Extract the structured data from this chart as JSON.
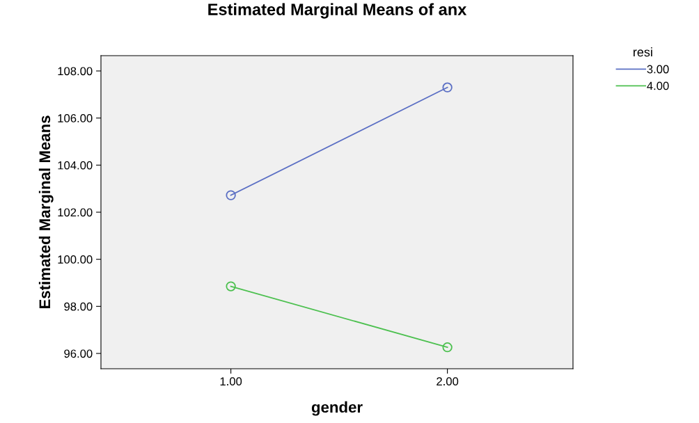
{
  "chart_data": {
    "type": "line",
    "title": "Estimated Marginal Means of anx",
    "xlabel": "gender",
    "ylabel": "Estimated Marginal Means",
    "legend_title": "resi",
    "x": [
      1,
      2
    ],
    "series": [
      {
        "name": "3.00",
        "color": "#5b6fc4",
        "values": [
          102.72,
          107.3
        ]
      },
      {
        "name": "4.00",
        "color": "#4cc04f",
        "values": [
          98.85,
          96.26
        ]
      }
    ],
    "xlim": [
      0.4,
      2.58
    ],
    "xticks": [
      {
        "value": 1,
        "label": "1.00"
      },
      {
        "value": 2,
        "label": "2.00"
      }
    ],
    "ylim": [
      95.35,
      108.65
    ],
    "yticks": [
      {
        "value": 96,
        "label": "96.00"
      },
      {
        "value": 98,
        "label": "98.00"
      },
      {
        "value": 100,
        "label": "100.00"
      },
      {
        "value": 102,
        "label": "102.00"
      },
      {
        "value": 104,
        "label": "104.00"
      },
      {
        "value": 106,
        "label": "106.00"
      },
      {
        "value": 108,
        "label": "108.00"
      }
    ],
    "grid": false,
    "legend": "top right",
    "marker": "circle",
    "line_style": "solid"
  }
}
